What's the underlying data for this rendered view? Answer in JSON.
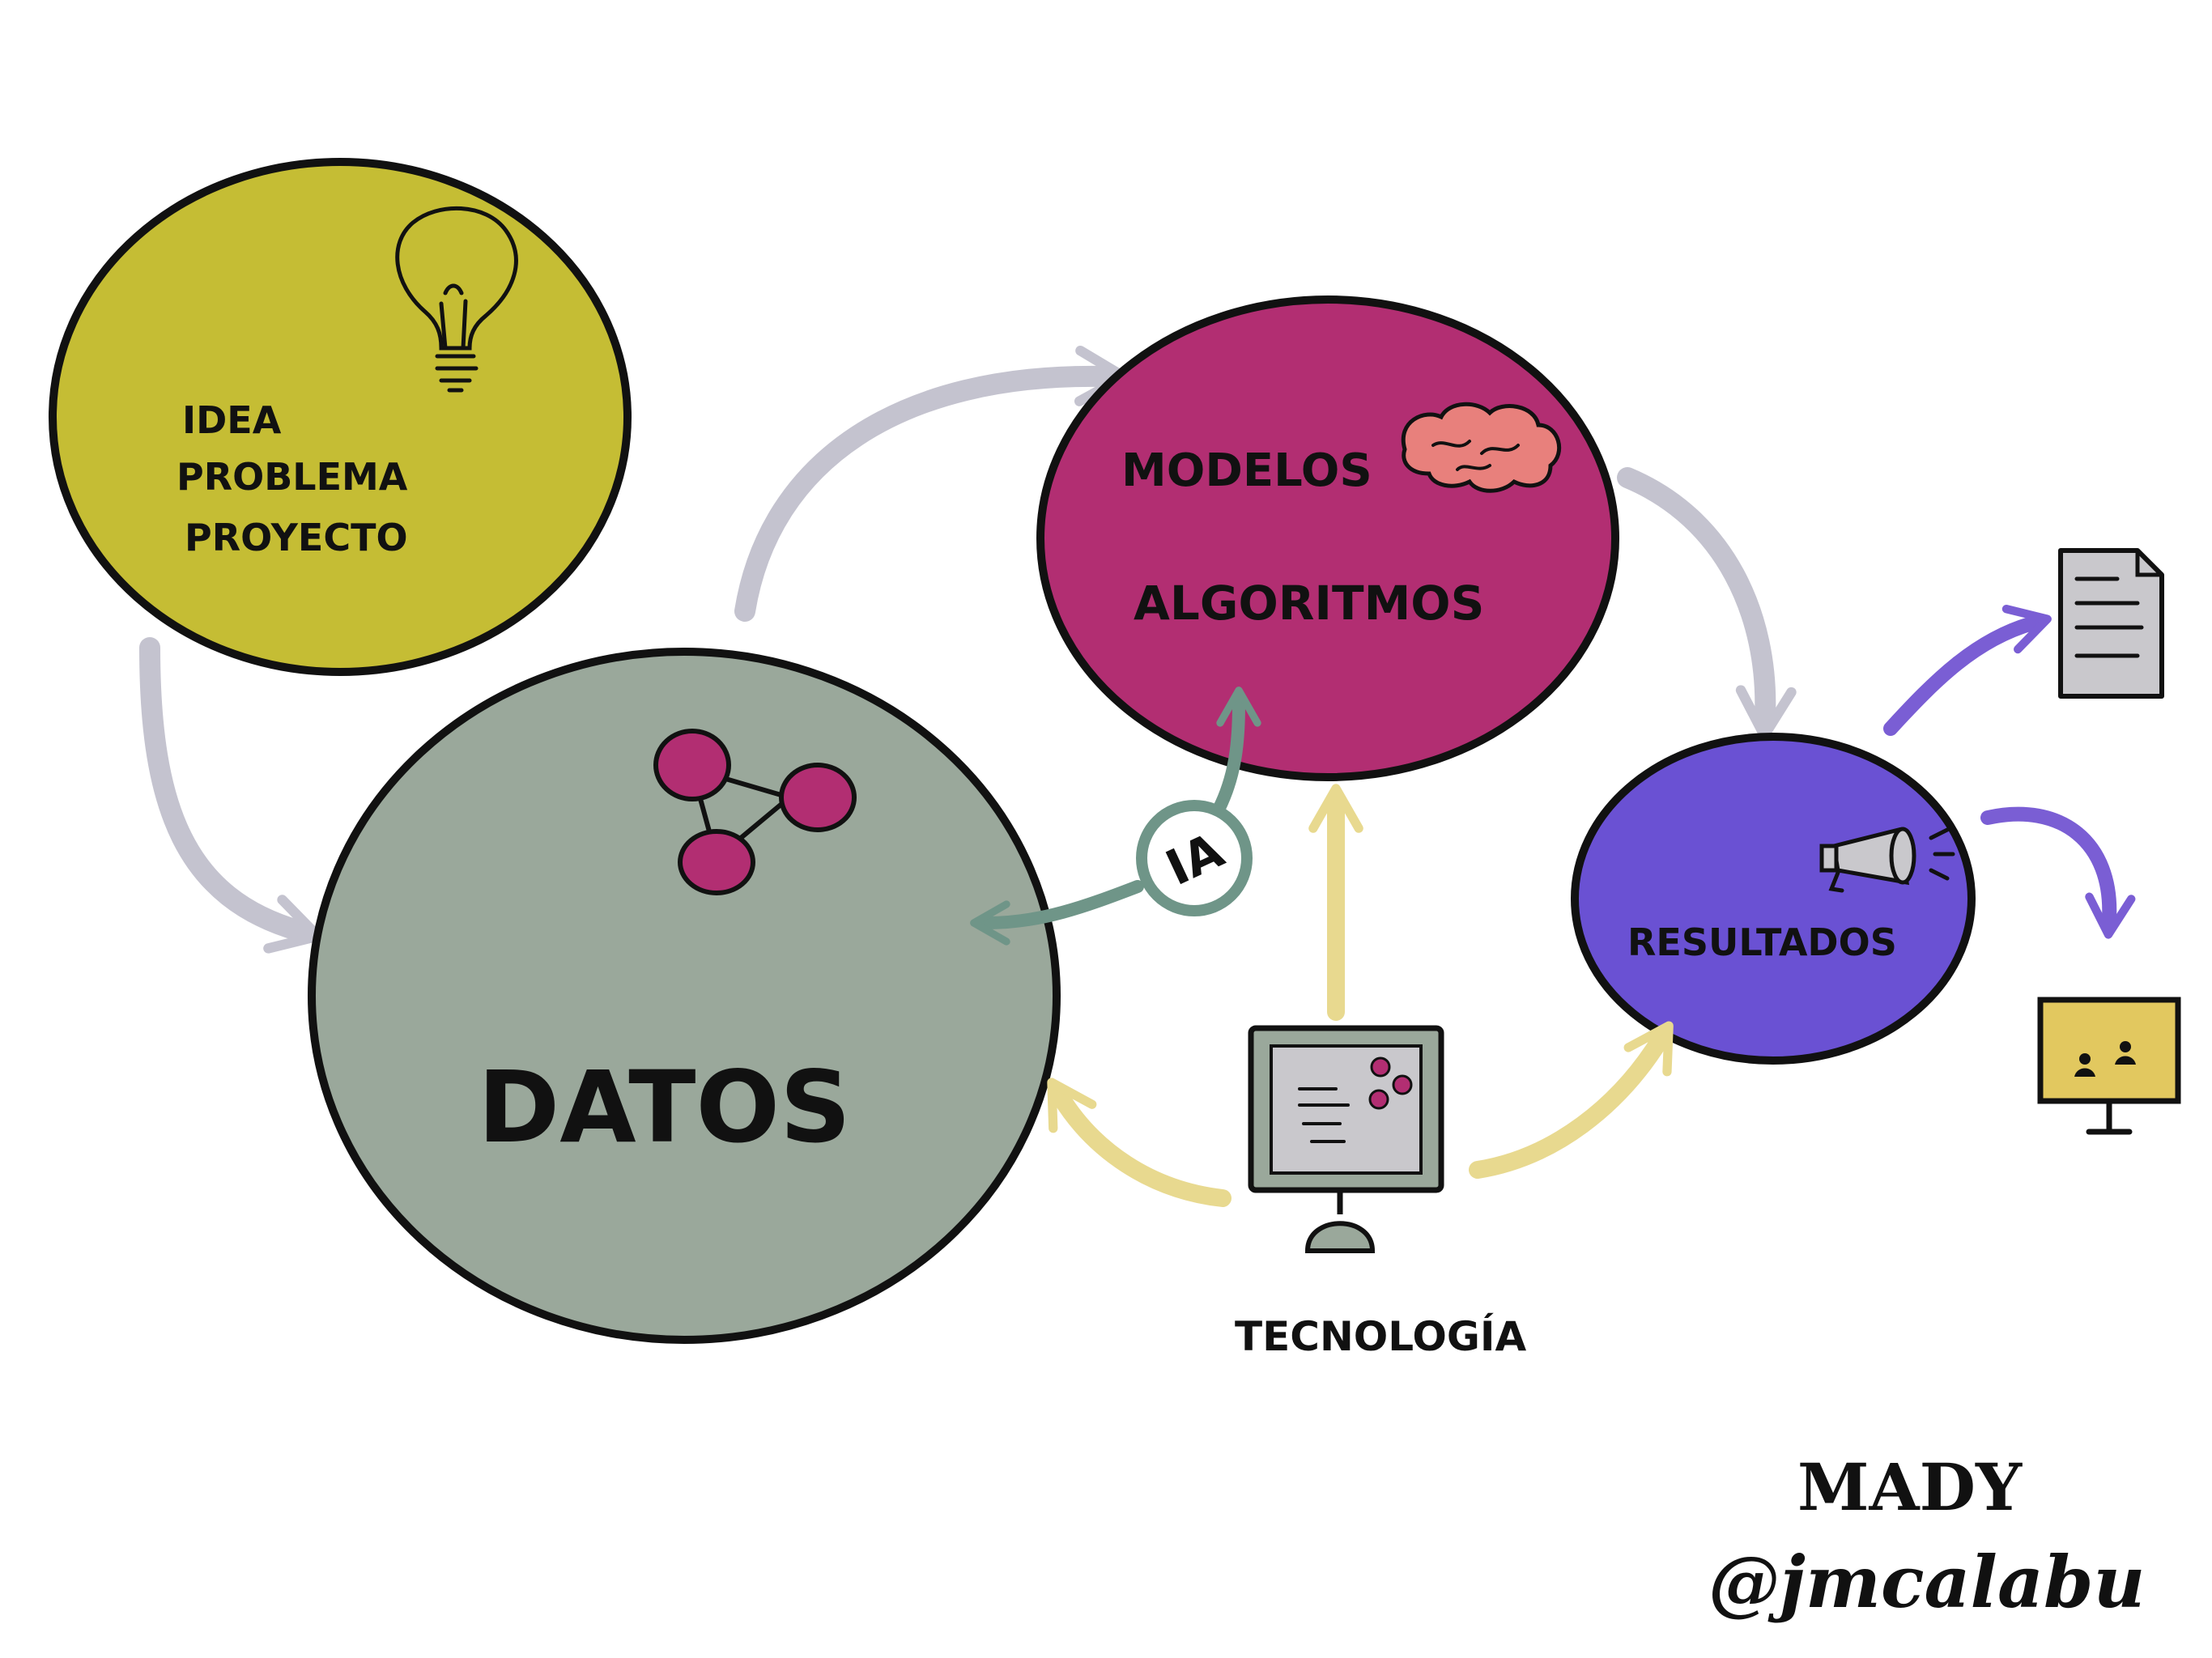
{
  "circles": {
    "idea": {
      "lines": [
        "IDEA",
        "PROBLEMA",
        "PROYECTO"
      ],
      "color": "#c5bd34"
    },
    "datos": {
      "label": "DATOS",
      "color": "#9aa89b"
    },
    "modelos": {
      "line1": "MODELOS",
      "line2": "ALGORITMOS",
      "color": "#b22e72"
    },
    "resultados": {
      "label": "RESULTADOS",
      "color": "#6a51d3"
    }
  },
  "ia_badge": {
    "label": "IA",
    "color": "#6f9588"
  },
  "tecnologia": {
    "label": "TECNOLOGÍA"
  },
  "signature": {
    "line1": "MADY",
    "line2": "@jmcalabu"
  },
  "colors": {
    "gray_arrow": "#c4c3cf",
    "yellow_arrow": "#e8d98f",
    "purple_arrow": "#7a5ed4",
    "brain": "#e8807c",
    "node": "#b22e72"
  },
  "icons": [
    "lightbulb-icon",
    "brain-icon",
    "network-icon",
    "megaphone-icon",
    "document-icon",
    "presentation-screen-icon",
    "computer-icon"
  ]
}
